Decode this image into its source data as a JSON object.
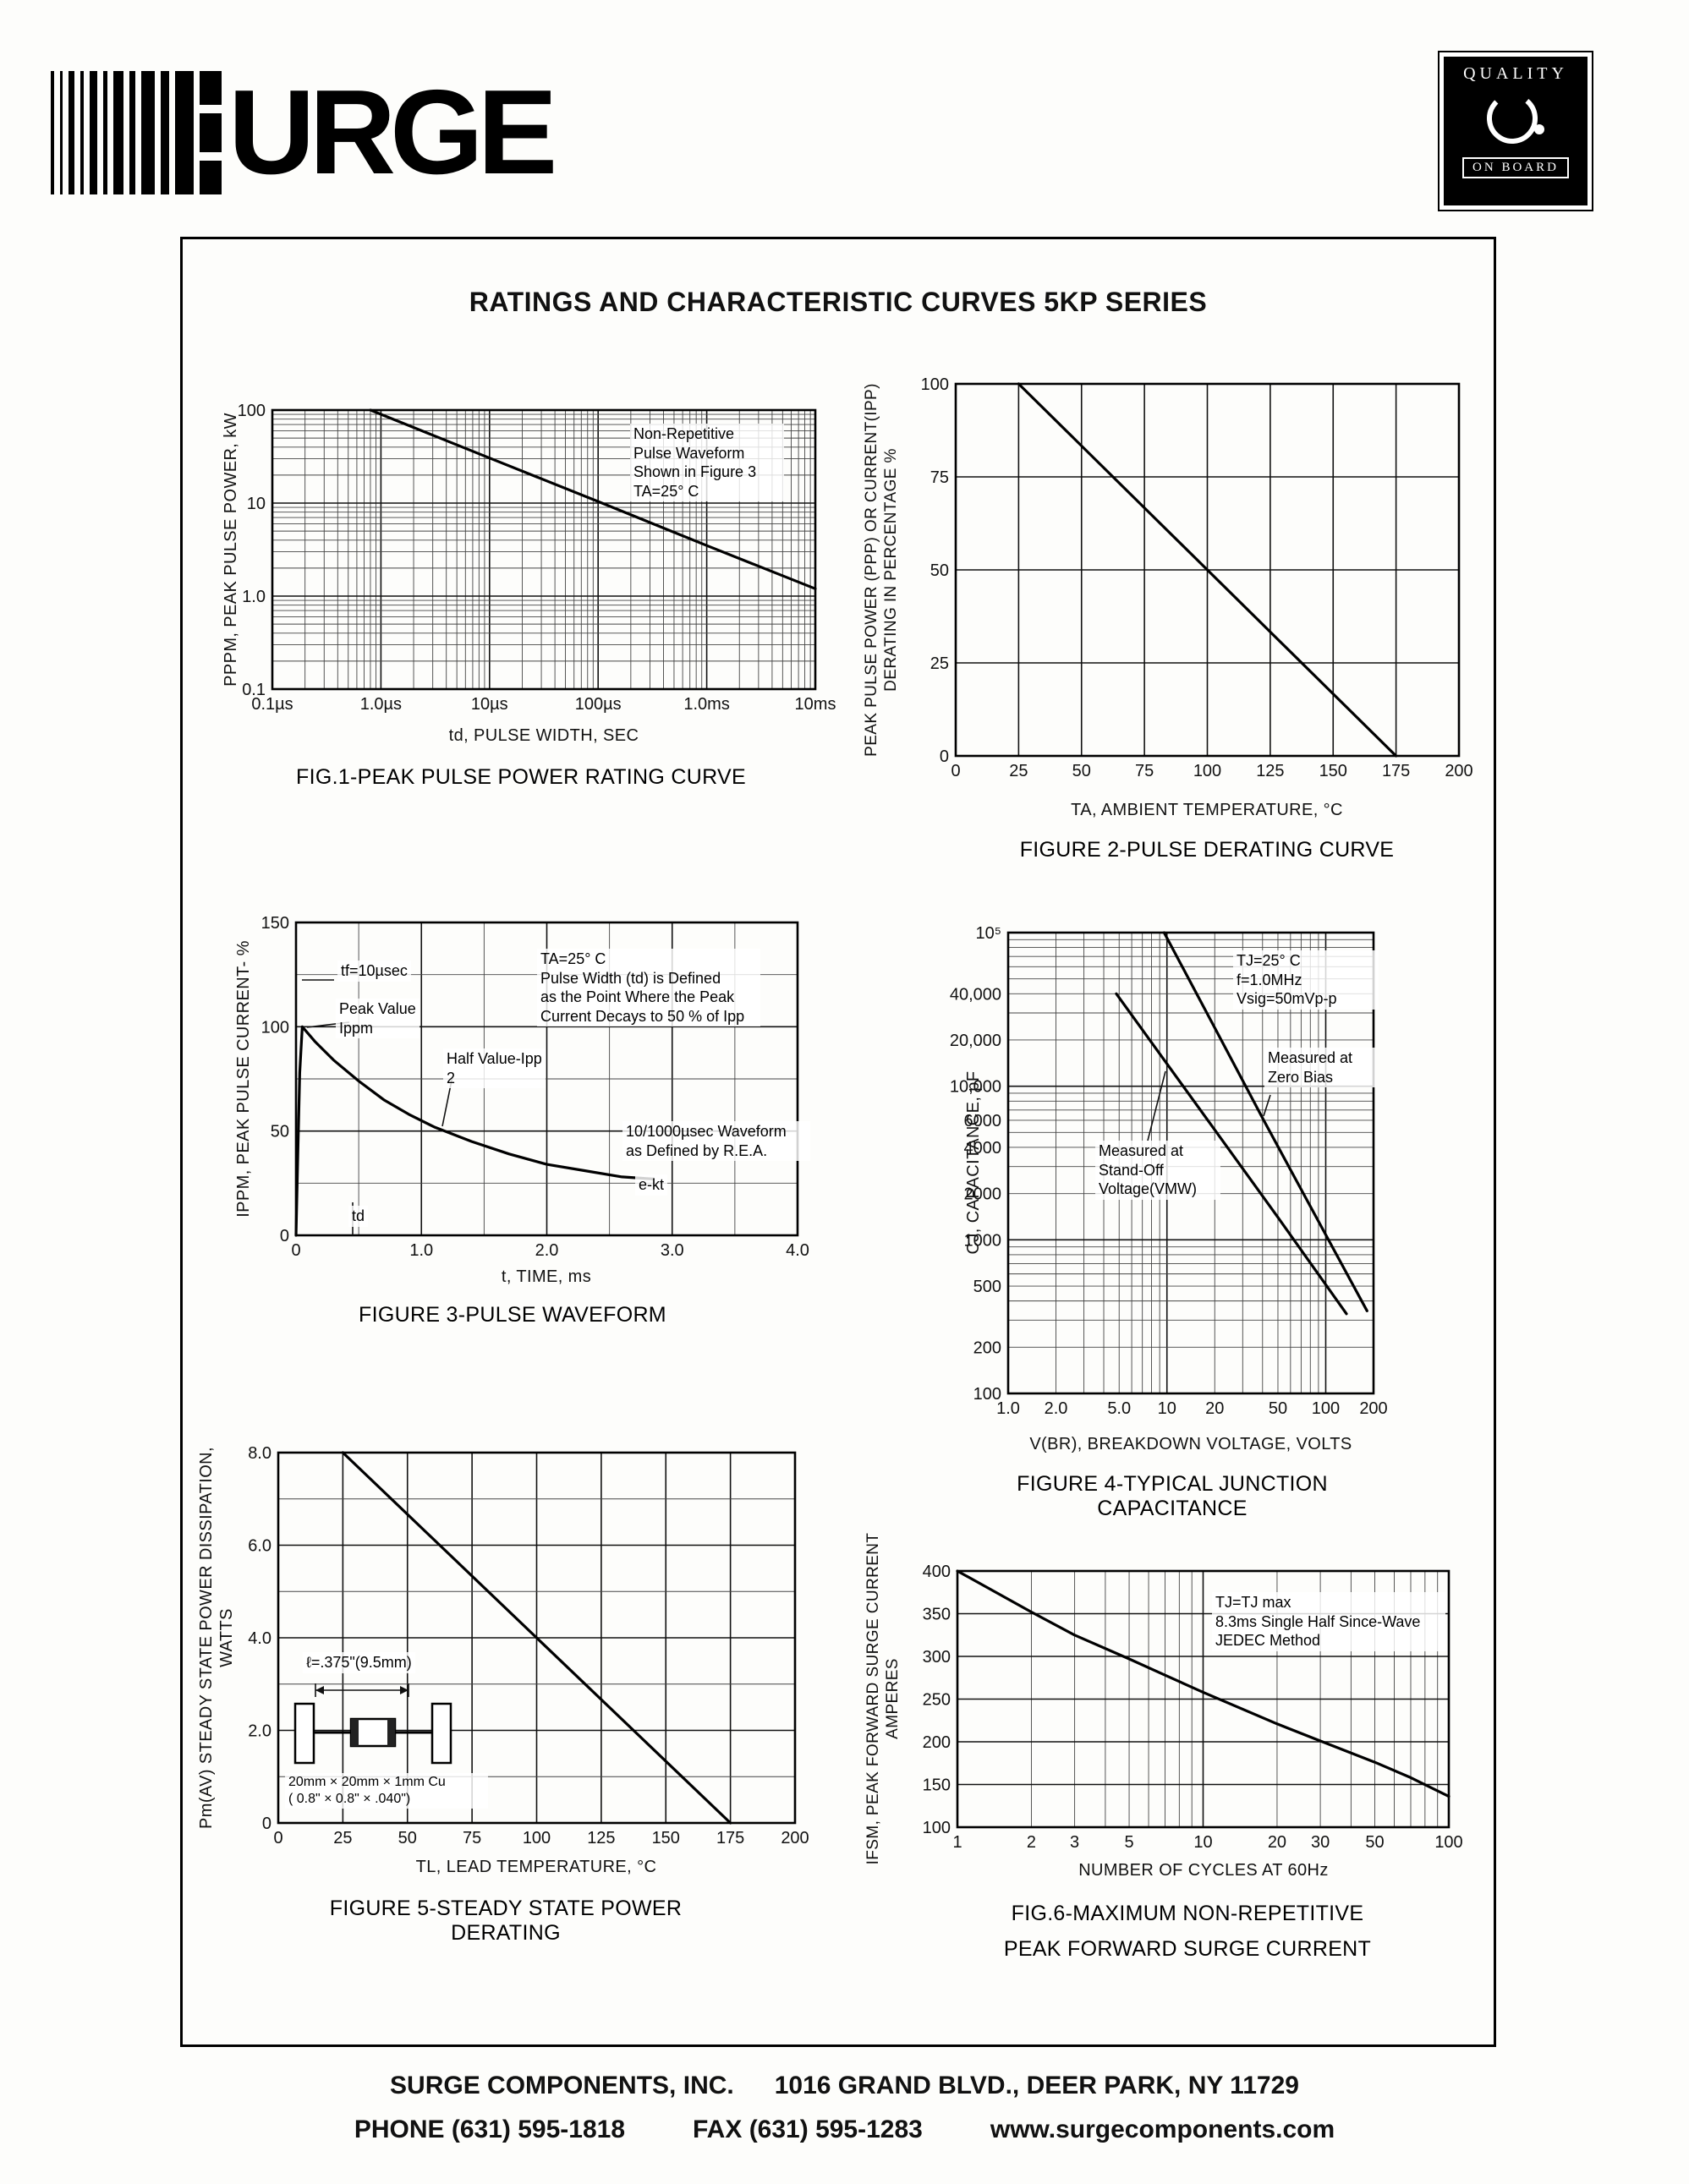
{
  "page": {
    "title": "RATINGS AND CHARACTERISTIC CURVES 5KP SERIES"
  },
  "logo": {
    "text": "URGE"
  },
  "quality_badge": {
    "line1": "QUALITY",
    "line2": "ON BOARD"
  },
  "footer": {
    "company": "SURGE COMPONENTS, INC.",
    "address": "1016 GRAND BLVD., DEER PARK, NY 11729",
    "phone": "PHONE (631) 595-1818",
    "fax": "FAX (631) 595-1283",
    "website": "www.surgecomponents.com"
  },
  "chart_data": [
    {
      "id": "fig1",
      "type": "line",
      "caption": "FIG.1-PEAK PULSE POWER RATING CURVE",
      "xlabel": "td, PULSE WIDTH, SEC",
      "ylabel": "PPPM,  PEAK  PULSE  POWER,  kW",
      "x_axis": {
        "type": "log",
        "min": 1e-07,
        "max": 0.01
      },
      "y_axis": {
        "type": "log",
        "min": 0.1,
        "max": 100
      },
      "x_ticks": {
        "values": [
          1e-07,
          1e-06,
          1e-05,
          0.0001,
          0.001,
          0.01
        ],
        "labels": [
          "0.1µs",
          "1.0µs",
          "10µs",
          "100µs",
          "1.0ms",
          "10ms"
        ]
      },
      "y_ticks": {
        "values": [
          0.1,
          1,
          10,
          100
        ],
        "labels": [
          "0.1",
          "1.0",
          "10",
          "100"
        ]
      },
      "series": [
        {
          "name": "peak-pulse-power",
          "points": [
            [
              8e-07,
              100
            ],
            [
              1e-06,
              90
            ],
            [
              1e-05,
              30.5
            ],
            [
              0.0001,
              10.4
            ],
            [
              0.001,
              3.5
            ],
            [
              0.01,
              1.2
            ]
          ]
        }
      ],
      "annotations": {
        "note": "Non-Repetitive\nPulse Waveform\nShown in Figure 3\nTA=25° C"
      }
    },
    {
      "id": "fig2",
      "type": "line",
      "caption": "FIGURE 2-PULSE DERATING CURVE",
      "xlabel": "TA, AMBIENT  TEMPERATURE, °C",
      "ylabel": "PEAK PULSE POWER (PPP) OR CURRENT(IPP)\nDERATING IN PERCENTAGE %",
      "x_axis": {
        "type": "linear",
        "min": 0,
        "max": 200
      },
      "y_axis": {
        "type": "linear",
        "min": 0,
        "max": 100
      },
      "x_ticks": {
        "values": [
          0,
          25,
          50,
          75,
          100,
          125,
          150,
          175,
          200
        ],
        "labels": [
          "0",
          "25",
          "50",
          "75",
          "100",
          "125",
          "150",
          "175",
          "200"
        ]
      },
      "y_ticks": {
        "values": [
          0,
          25,
          50,
          75,
          100
        ],
        "labels": [
          "0",
          "25",
          "50",
          "75",
          "100"
        ]
      },
      "series": [
        {
          "name": "derating",
          "points": [
            [
              25,
              100
            ],
            [
              175,
              0
            ]
          ]
        }
      ],
      "annotations": {}
    },
    {
      "id": "fig3",
      "type": "line",
      "caption": "FIGURE 3-PULSE WAVEFORM",
      "xlabel": "t, TIME, ms",
      "ylabel": "IPPM,  PEAK  PULSE  CURRENT- %",
      "x_axis": {
        "type": "linear",
        "min": 0,
        "max": 4
      },
      "y_axis": {
        "type": "linear",
        "min": 0,
        "max": 150
      },
      "x_ticks": {
        "values": [
          0,
          1,
          2,
          3,
          4
        ],
        "labels": [
          "0",
          "1.0",
          "2.0",
          "3.0",
          "4.0"
        ]
      },
      "y_ticks": {
        "values": [
          0,
          50,
          100,
          150
        ],
        "labels": [
          "0",
          "50",
          "100",
          "150"
        ]
      },
      "series": [
        {
          "name": "pulse-waveform",
          "points": [
            [
              0,
              0
            ],
            [
              0.015,
              40
            ],
            [
              0.03,
              78
            ],
            [
              0.05,
              100
            ],
            [
              0.15,
              93
            ],
            [
              0.3,
              84
            ],
            [
              0.5,
              74
            ],
            [
              0.7,
              65
            ],
            [
              0.9,
              58
            ],
            [
              1.1,
              52
            ],
            [
              1.4,
              45
            ],
            [
              1.7,
              39
            ],
            [
              2.0,
              34
            ],
            [
              2.3,
              31
            ],
            [
              2.6,
              28
            ],
            [
              2.85,
              27
            ]
          ]
        }
      ],
      "annotations": {
        "tf": "tf=10µsec",
        "peak": "Peak Value\nIppm",
        "half": "Half Value-Ipp\n2",
        "condition": "TA=25° C\nPulse Width (td) is Defined\nas the Point Where the Peak\nCurrent Decays to 50 % of Ipp",
        "rea": "10/1000µsec Waveform\nas Defined by R.E.A.",
        "ekt": "e-kt",
        "td": "td"
      }
    },
    {
      "id": "fig4",
      "type": "line",
      "caption": "FIGURE 4-TYPICAL JUNCTION CAPACITANCE",
      "xlabel": "V(BR), BREAKDOWN  VOLTAGE, VOLTS",
      "ylabel": "CJ, CAPACITANCE, pF",
      "x_axis": {
        "type": "log",
        "min": 1,
        "max": 200
      },
      "y_axis": {
        "type": "log",
        "min": 100,
        "max": 100000
      },
      "x_ticks": {
        "values": [
          1,
          2,
          5,
          10,
          20,
          50,
          100,
          200
        ],
        "labels": [
          "1.0",
          "2.0",
          "5.0",
          "10",
          "20",
          "50",
          "100",
          "200"
        ]
      },
      "y_ticks": {
        "values": [
          100,
          200,
          500,
          1000,
          2000,
          4000,
          6000,
          10000,
          20000,
          40000,
          100000
        ],
        "labels": [
          "100",
          "200",
          "500",
          "1000",
          "2000",
          "4000",
          "6000",
          "10,000",
          "20,000",
          "40,000",
          "10⁵"
        ]
      },
      "series": [
        {
          "name": "measured-at-zero-bias",
          "points": [
            [
              9.6,
              100000
            ],
            [
              20,
              24000
            ],
            [
              40,
              6200
            ],
            [
              80,
              1650
            ],
            [
              182,
              345
            ]
          ]
        },
        {
          "name": "measured-at-stand-off-voltage",
          "points": [
            [
              4.8,
              40000
            ],
            [
              10,
              14000
            ],
            [
              20,
              5200
            ],
            [
              50,
              1400
            ],
            [
              135,
              330
            ]
          ]
        }
      ],
      "annotations": {
        "condition": "TJ=25° C\nf=1.0MHz\nVsig=50mVp-p",
        "zero_bias": "Measured at\nZero Bias",
        "stand_off": "Measured at\nStand-Off\nVoltage(VMW)"
      }
    },
    {
      "id": "fig5",
      "type": "line",
      "caption": "FIGURE 5-STEADY STATE POWER DERATING",
      "xlabel": "TL, LEAD  TEMPERATURE, °C",
      "ylabel": "Pm(AV) STEADY STATE POWER DISSIPATION, WATTS",
      "x_axis": {
        "type": "linear",
        "min": 0,
        "max": 200
      },
      "y_axis": {
        "type": "linear",
        "min": 0,
        "max": 8
      },
      "x_ticks": {
        "values": [
          0,
          25,
          50,
          75,
          100,
          125,
          150,
          175,
          200
        ],
        "labels": [
          "0",
          "25",
          "50",
          "75",
          "100",
          "125",
          "150",
          "175",
          "200"
        ]
      },
      "y_ticks": {
        "values": [
          0,
          2,
          4,
          6,
          8
        ],
        "labels": [
          "0",
          "2.0",
          "4.0",
          "6.0",
          "8.0"
        ]
      },
      "series": [
        {
          "name": "power-derating",
          "points": [
            [
              25,
              8
            ],
            [
              175,
              0
            ]
          ]
        }
      ],
      "annotations": {
        "lead_length": "ℓ=.375\"(9.5mm)",
        "cu_plate": "20mm × 20mm × 1mm Cu\n( 0.8\" ×  0.8\" × .040\")"
      }
    },
    {
      "id": "fig6",
      "type": "line",
      "caption": "FIG.6-MAXIMUM NON-REPETITIVE",
      "caption2": "PEAK FORWARD SURGE CURRENT",
      "xlabel": "NUMBER  OF  CYCLES  AT  60Hz",
      "ylabel": "IFSM, PEAK FORWARD SURGE CURRENT\nAMPERES",
      "x_axis": {
        "type": "log",
        "min": 1,
        "max": 100
      },
      "y_axis": {
        "type": "linear",
        "min": 100,
        "max": 400
      },
      "x_ticks": {
        "values": [
          1,
          2,
          3,
          5,
          10,
          20,
          30,
          50,
          100
        ],
        "labels": [
          "1",
          "2",
          "3",
          "5",
          "10",
          "20",
          "30",
          "50",
          "100"
        ]
      },
      "y_ticks": {
        "values": [
          100,
          150,
          200,
          250,
          300,
          350,
          400
        ],
        "labels": [
          "100",
          "150",
          "200",
          "250",
          "300",
          "350",
          "400"
        ]
      },
      "series": [
        {
          "name": "surge-current",
          "points": [
            [
              1,
              400
            ],
            [
              2,
              352
            ],
            [
              3,
              325
            ],
            [
              5,
              297
            ],
            [
              7,
              278
            ],
            [
              10,
              258
            ],
            [
              20,
              221
            ],
            [
              30,
              201
            ],
            [
              50,
              176
            ],
            [
              70,
              158
            ],
            [
              100,
              136
            ]
          ]
        }
      ],
      "annotations": {
        "condition": "TJ=TJ max\n8.3ms Single Half Since-Wave\nJEDEC Method"
      }
    }
  ]
}
